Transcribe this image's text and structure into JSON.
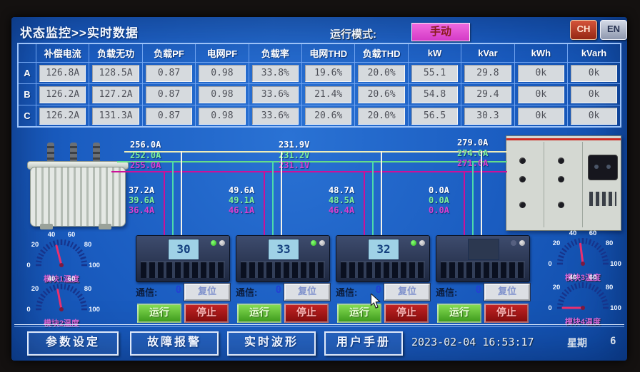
{
  "header": {
    "title": "状态监控>>实时数据",
    "run_mode_label": "运行模式:",
    "run_mode_value": "手动",
    "lang_icons": [
      {
        "label": "CH"
      },
      {
        "label": "EN"
      }
    ]
  },
  "table": {
    "columns": [
      "补偿电流",
      "负载无功",
      "负载PF",
      "电网PF",
      "负载率",
      "电网THD",
      "负载THD",
      "kW",
      "kVar",
      "kWh",
      "kVarh"
    ],
    "rows": [
      {
        "label": "A",
        "values": [
          "126.8A",
          "128.5A",
          "0.87",
          "0.98",
          "33.8%",
          "19.6%",
          "20.0%",
          "55.1",
          "29.8",
          "0k",
          "0k"
        ]
      },
      {
        "label": "B",
        "values": [
          "126.2A",
          "127.2A",
          "0.87",
          "0.98",
          "33.6%",
          "21.4%",
          "20.6%",
          "54.8",
          "29.4",
          "0k",
          "0k"
        ]
      },
      {
        "label": "C",
        "values": [
          "126.2A",
          "131.3A",
          "0.87",
          "0.98",
          "33.6%",
          "20.6%",
          "20.0%",
          "56.5",
          "30.3",
          "0k",
          "0k"
        ]
      }
    ]
  },
  "diagram": {
    "bus_labels_left": [
      "256.0A",
      "252.0A",
      "255.0A"
    ],
    "bus_labels_mid": [
      "231.9V",
      "231.2V",
      "231.1V"
    ],
    "bus_labels_right": [
      "279.0A",
      "274.0A",
      "271.0A"
    ],
    "branches": [
      {
        "currents": [
          "37.2A",
          "39.6A",
          "36.4A"
        ]
      },
      {
        "currents": [
          "49.6A",
          "49.1A",
          "46.1A"
        ]
      },
      {
        "currents": [
          "48.7A",
          "48.5A",
          "46.4A"
        ]
      },
      {
        "currents": [
          "0.0A",
          "0.0A",
          "0.0A"
        ]
      }
    ],
    "phase_colors": {
      "phase_a": "#eeeeb8",
      "phase_b": "#66dd88",
      "phase_c": "#cc1199"
    }
  },
  "modules": [
    {
      "display": "30",
      "comm_label": "通信:",
      "comm_value": "0",
      "reset_label": "复位",
      "run_label": "运行",
      "stop_label": "停止",
      "screen_on": true
    },
    {
      "display": "33",
      "comm_label": "通信:",
      "comm_value": "0",
      "reset_label": "复位",
      "run_label": "运行",
      "stop_label": "停止",
      "screen_on": true
    },
    {
      "display": "32",
      "comm_label": "通信:",
      "comm_value": "0",
      "reset_label": "复位",
      "run_label": "运行",
      "stop_label": "停止",
      "screen_on": true
    },
    {
      "display": "",
      "comm_label": "通信:",
      "comm_value": "0",
      "reset_label": "复位",
      "run_label": "运行",
      "stop_label": "停止",
      "screen_on": false
    }
  ],
  "gauges": {
    "ticks": [
      "0",
      "20",
      "40",
      "60",
      "80",
      "100"
    ],
    "items": [
      {
        "label": "模块1温度",
        "value": 42
      },
      {
        "label": "模块2温度",
        "value": 44
      },
      {
        "label": "模块3温度",
        "value": 46
      },
      {
        "label": "模块4温度",
        "value": 0
      }
    ]
  },
  "footer": {
    "buttons": [
      "参数设定",
      "故障报警",
      "实时波形",
      "用户手册"
    ],
    "datetime": "2023-02-04 16:53:17",
    "week_label": "星期",
    "week_value": "6"
  }
}
